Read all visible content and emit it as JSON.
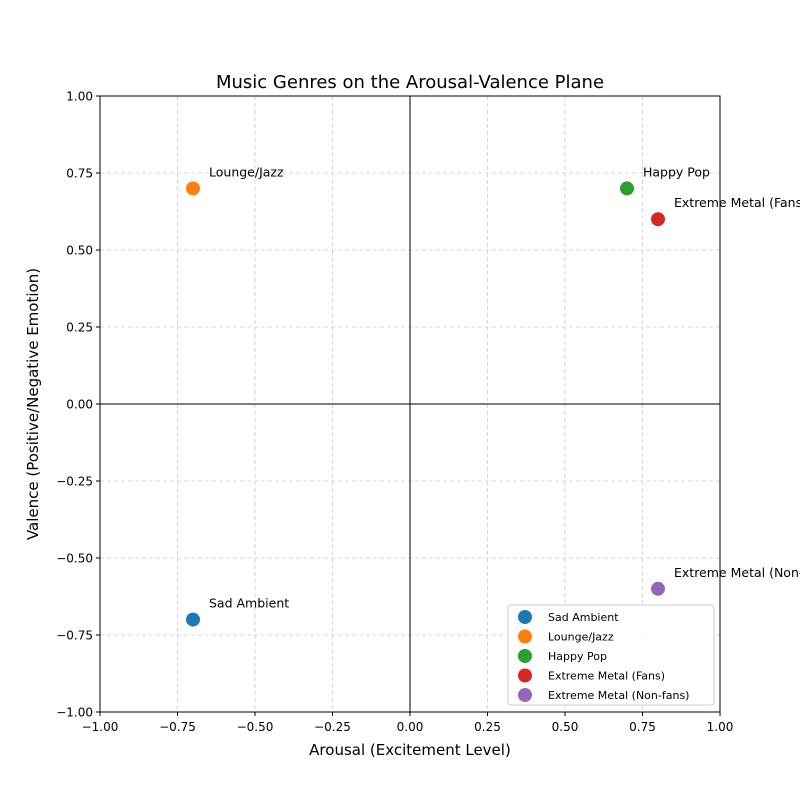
{
  "chart_data": {
    "type": "scatter",
    "title": "Music Genres on the Arousal-Valence Plane",
    "xlabel": "Arousal (Excitement Level)",
    "ylabel": "Valence (Positive/Negative Emotion)",
    "xlim": [
      -1.0,
      1.0
    ],
    "ylim": [
      -1.0,
      1.0
    ],
    "xticks": [
      -1.0,
      -0.75,
      -0.5,
      -0.25,
      0.0,
      0.25,
      0.5,
      0.75,
      1.0
    ],
    "yticks": [
      -1.0,
      -0.75,
      -0.5,
      -0.25,
      0.0,
      0.25,
      0.5,
      0.75,
      1.0
    ],
    "xtick_labels": [
      "−1.00",
      "−0.75",
      "−0.50",
      "−0.25",
      "0.00",
      "0.25",
      "0.50",
      "0.75",
      "1.00"
    ],
    "ytick_labels": [
      "−1.00",
      "−0.75",
      "−0.50",
      "−0.25",
      "0.00",
      "0.25",
      "0.50",
      "0.75",
      "1.00"
    ],
    "grid": true,
    "grid_style": "dashed",
    "zero_lines": true,
    "legend_position": "lower-right",
    "series": [
      {
        "name": "Sad Ambient",
        "x": -0.7,
        "y": -0.7,
        "color": "#1f77b4",
        "annotation": "Sad Ambient"
      },
      {
        "name": "Lounge/Jazz",
        "x": -0.7,
        "y": 0.7,
        "color": "#ff7f0e",
        "annotation": "Lounge/Jazz"
      },
      {
        "name": "Happy Pop",
        "x": 0.7,
        "y": 0.7,
        "color": "#2ca02c",
        "annotation": "Happy Pop"
      },
      {
        "name": "Extreme Metal (Fans)",
        "x": 0.8,
        "y": 0.6,
        "color": "#d62728",
        "annotation": "Extreme Metal (Fans)"
      },
      {
        "name": "Extreme Metal (Non-fans)",
        "x": 0.8,
        "y": -0.6,
        "color": "#9467bd",
        "annotation": "Extreme Metal (Non-fans)"
      }
    ]
  }
}
